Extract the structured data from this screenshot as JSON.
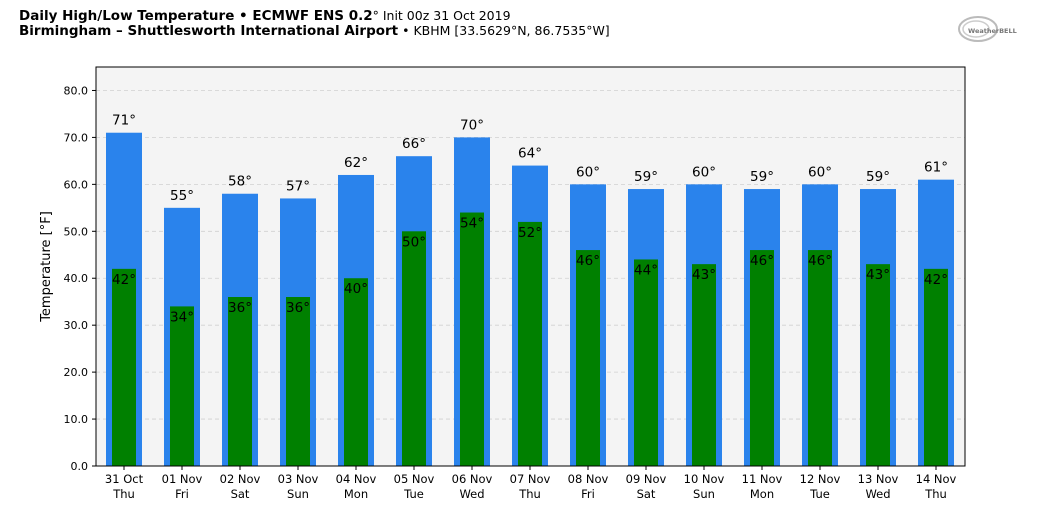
{
  "header": {
    "title_bold": "Daily High/Low Temperature • ECMWF ENS 0.2",
    "title_deg": "°",
    "title_init": " Init 00z 31 Oct 2019",
    "subtitle_bold": "Birmingham – Shuttlesworth International Airport",
    "subtitle_rest": " • KBHM [33.5629°N, 86.7535°W]",
    "logo_text": "WeatherBELL"
  },
  "colors": {
    "high": "#2a83ec",
    "low": "#008000",
    "plot_bg": "#f4f4f4"
  },
  "chart_data": {
    "type": "bar",
    "title": "Daily High/Low Temperature",
    "xlabel": "",
    "ylabel": "Temperature [°F]",
    "ylim": [
      0,
      85
    ],
    "yticks": [
      0,
      10,
      20,
      30,
      40,
      50,
      60,
      70,
      80
    ],
    "grid": true,
    "categories": [
      "31 Oct\nThu",
      "01 Nov\nFri",
      "02 Nov\nSat",
      "03 Nov\nSun",
      "04 Nov\nMon",
      "05 Nov\nTue",
      "06 Nov\nWed",
      "07 Nov\nThu",
      "08 Nov\nFri",
      "09 Nov\nSat",
      "10 Nov\nSun",
      "11 Nov\nMon",
      "12 Nov\nTue",
      "13 Nov\nWed",
      "14 Nov\nThu"
    ],
    "series": [
      {
        "name": "High",
        "values": [
          71,
          55,
          58,
          57,
          62,
          66,
          70,
          64,
          60,
          59,
          60,
          59,
          60,
          59,
          61
        ]
      },
      {
        "name": "Low",
        "values": [
          42,
          34,
          36,
          36,
          40,
          50,
          54,
          52,
          46,
          44,
          43,
          46,
          46,
          43,
          42
        ]
      }
    ]
  }
}
